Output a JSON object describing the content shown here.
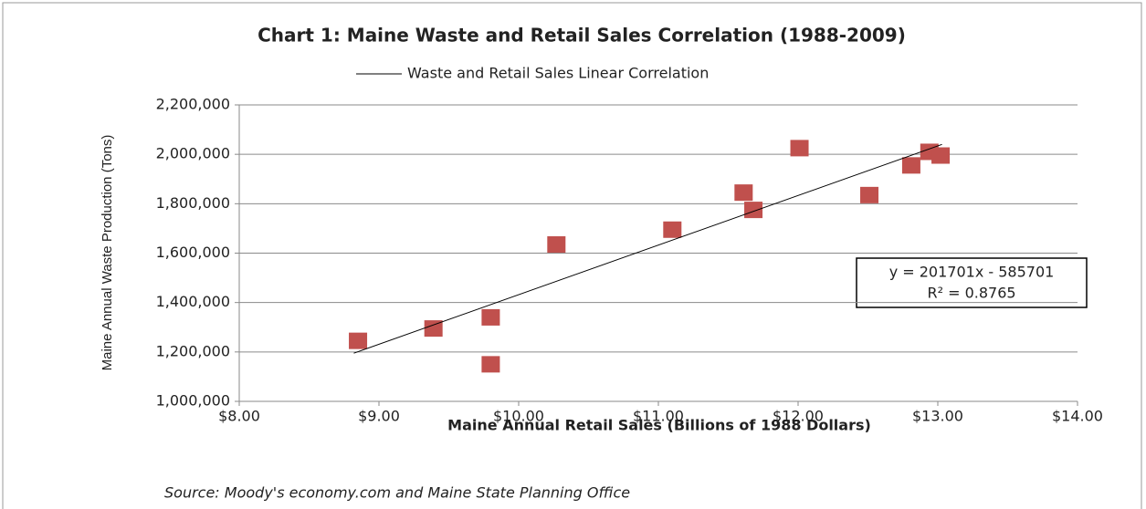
{
  "chart_data": {
    "type": "scatter",
    "title": "Chart 1: Maine Waste and Retail Sales Correlation (1988-2009)",
    "x_label": "Maine Annual Retail Sales (Billions of 1988 Dollars)",
    "y_label": "Maine Annual Waste Production (Tons)",
    "source": "Source: Moody's economy.com and Maine State Planning Office",
    "series": [
      {
        "color": "#c0504d",
        "x": [
          8.85,
          9.39,
          9.8,
          9.8,
          10.27,
          11.1,
          11.61,
          11.68,
          12.01,
          12.51,
          12.81,
          12.94,
          13.02
        ],
        "values": [
          1245000,
          1295000,
          1340000,
          1150000,
          1635000,
          1695000,
          1845000,
          1775000,
          2025000,
          1835000,
          1955000,
          2010000,
          1995000
        ]
      }
    ],
    "trendline": {
      "name": "Waste and Retail Sales Linear Correlation",
      "color": "#000000",
      "x": [
        8.82,
        13.03
      ],
      "values": [
        1195000,
        2040000
      ]
    },
    "annotation": [
      "y = 201701x - 585701",
      "R² = 0.8765"
    ],
    "xlim": [
      8,
      14
    ],
    "xticks": [
      {
        "value": 8,
        "label": "$8.00"
      },
      {
        "value": 9,
        "label": "$9.00"
      },
      {
        "value": 10,
        "label": "$10.00"
      },
      {
        "value": 11,
        "label": "$11.00"
      },
      {
        "value": 12,
        "label": "$12.00"
      },
      {
        "value": 13,
        "label": "$13.00"
      },
      {
        "value": 14,
        "label": "$14.00"
      }
    ],
    "ylim": [
      1000000,
      2200000
    ],
    "yticks": [
      {
        "value": 1000000,
        "label": "1,000,000"
      },
      {
        "value": 1200000,
        "label": "1,200,000"
      },
      {
        "value": 1400000,
        "label": "1,400,000"
      },
      {
        "value": 1600000,
        "label": "1,600,000"
      },
      {
        "value": 1800000,
        "label": "1,800,000"
      },
      {
        "value": 2000000,
        "label": "2,000,000"
      },
      {
        "value": 2200000,
        "label": "2,200,000"
      }
    ],
    "grid": true,
    "legend": "top"
  }
}
